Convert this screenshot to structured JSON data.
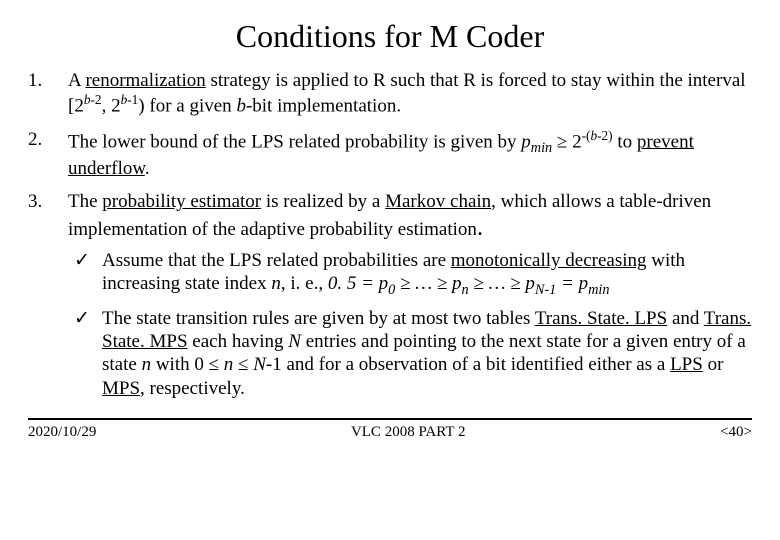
{
  "title": "Conditions for M Coder",
  "items": {
    "n1": "1.",
    "n2": "2.",
    "n3": "3.",
    "t1a": "A ",
    "t1b": "renormalization",
    "t1c": " strategy is applied to R such that R is forced to stay within the interval [2",
    "t1d": "b",
    "t1e": "-2",
    "t1f": ", 2",
    "t1g": "b",
    "t1h": "-1",
    "t1i": ") for a given ",
    "t1j": "b",
    "t1k": "-bit implementation.",
    "t2a": "The lower bound of the LPS related probability is given by ",
    "t2b": "p",
    "t2c": "min",
    "t2d": " ≥ 2",
    "t2e": "-(",
    "t2f": "b",
    "t2g": "-2)",
    "t2h": " to ",
    "t2i": "prevent underflow",
    "t2j": ".",
    "t3a": "The ",
    "t3b": "probability estimator",
    "t3c": " is realized by a ",
    "t3d": "Markov chain",
    "t3e": ", which allows a table-driven implementation of the adaptive probability estimation",
    "t3f": "."
  },
  "sub": {
    "check": "✓",
    "s1a": "Assume that the LPS related probabilities are ",
    "s1b": "monotonically decreasing",
    "s1c": " with increasing state index ",
    "s1d": "n",
    "s1e": ", i. e., ",
    "s1f": "0. 5 = p",
    "s1g": "0",
    "s1h": " ≥ … ≥ p",
    "s1i": "n",
    "s1j": " ≥ … ≥ p",
    "s1k": "N",
    "s1l": "-1",
    "s1m": " = p",
    "s1n": "min",
    "s2a": "The state transition rules are given by at most two tables ",
    "s2b": "Trans. State. LPS",
    "s2c": " and ",
    "s2d": "Trans. State. MPS",
    "s2e": " each having ",
    "s2f": "N",
    "s2g": " entries and pointing to the next state for a given entry of a state ",
    "s2h": "n",
    "s2i": " with 0 ≤ ",
    "s2j": "n",
    "s2k": " ≤ ",
    "s2l": "N",
    "s2m": "-1 and for a observation of a bit identified either as a ",
    "s2n": "LPS",
    "s2o": " or ",
    "s2p": "MPS",
    "s2q": ", respectively."
  },
  "footer": {
    "date": "2020/10/29",
    "center": "VLC 2008 PART 2",
    "page": "<40>"
  },
  "colors": {
    "background": "#ffffff",
    "text": "#000000",
    "rule": "#000000"
  },
  "typography": {
    "title_fontsize": 32,
    "body_fontsize": 19,
    "footer_fontsize": 15,
    "font_family": "Times New Roman"
  }
}
